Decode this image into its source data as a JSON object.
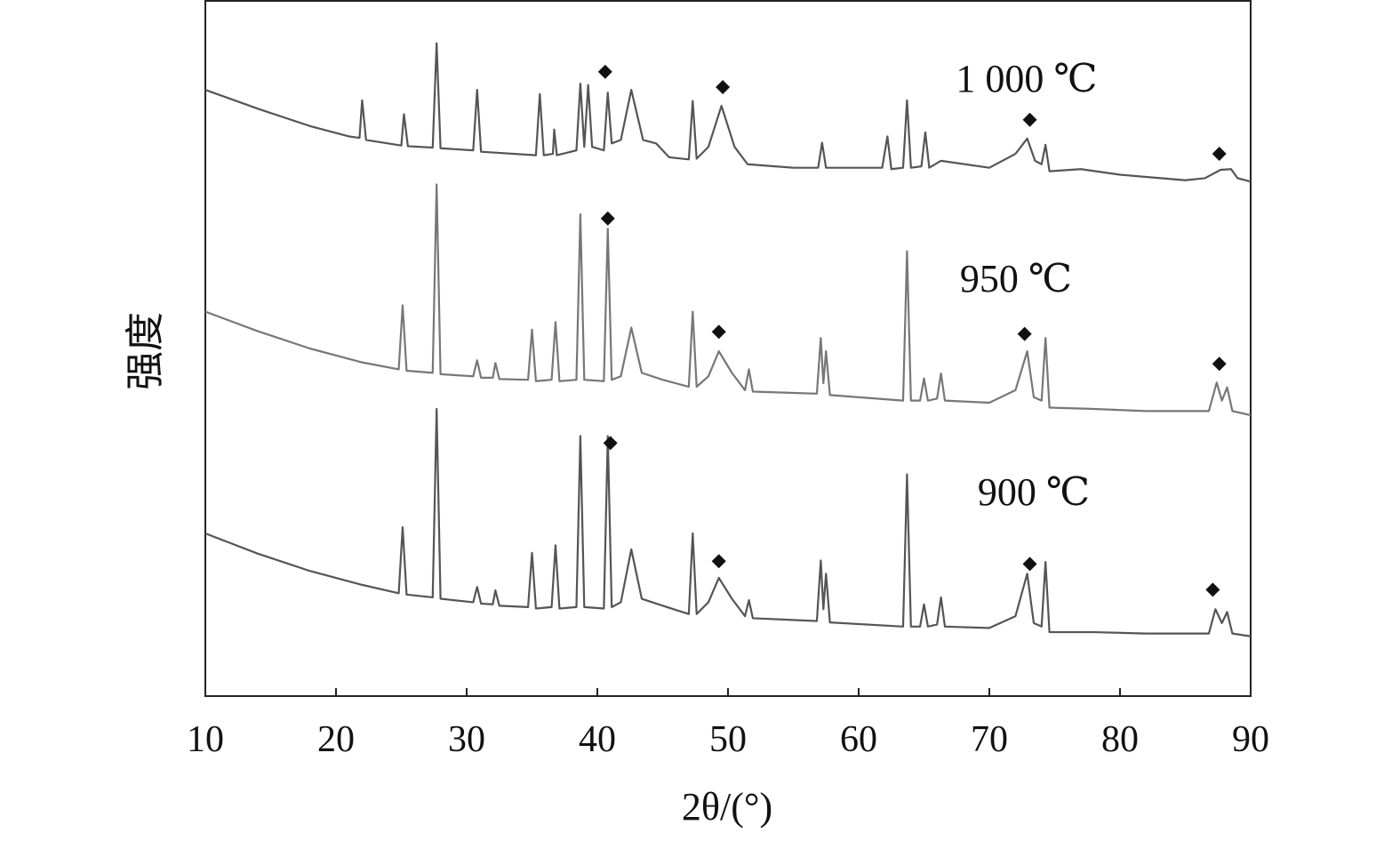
{
  "chart_data": {
    "type": "line",
    "xlabel": "2θ/(°)",
    "ylabel": "强度",
    "xlim": [
      10,
      90
    ],
    "xticks": [
      10,
      20,
      30,
      40,
      50,
      60,
      70,
      80,
      90
    ],
    "ylim": [
      0,
      100
    ],
    "series": [
      {
        "name": "1 000 ℃",
        "color": "#555555",
        "x": [
          10,
          14,
          18,
          21,
          21.8,
          22,
          22.3,
          25,
          25.2,
          25.5,
          27.4,
          27.7,
          28,
          30.5,
          30.8,
          31.1,
          35.3,
          35.6,
          35.9,
          36.6,
          36.7,
          36.9,
          38.4,
          38.7,
          39,
          39.3,
          39.6,
          40.5,
          40.8,
          41.1,
          41.8,
          42.6,
          43.5,
          44.5,
          45.5,
          47,
          47.3,
          47.6,
          48.5,
          49.5,
          50.5,
          51.5,
          55,
          56.9,
          57.2,
          57.5,
          61.8,
          62.2,
          62.5,
          63.4,
          63.7,
          64,
          64.8,
          65.1,
          65.4,
          66.3,
          70,
          72,
          72.9,
          73.5,
          74,
          74.3,
          74.6,
          77,
          80,
          85,
          86.5,
          87.7,
          88.5,
          89,
          90
        ],
        "values": [
          87.2,
          84.5,
          82,
          80.5,
          80.3,
          85.7,
          80,
          79.2,
          83.7,
          79.1,
          78.9,
          93.9,
          78.8,
          78.5,
          87.2,
          78.3,
          77.8,
          86.6,
          77.8,
          78,
          81.5,
          77.8,
          78.5,
          88.1,
          79,
          87.9,
          79,
          78.5,
          86.8,
          79.5,
          80,
          87.2,
          80,
          79.5,
          77.5,
          77.2,
          85.6,
          77.3,
          79,
          84.9,
          79,
          76.5,
          76,
          76,
          79.6,
          76,
          76,
          80.5,
          75.8,
          76,
          85.7,
          76,
          76.2,
          81.1,
          76,
          77,
          76,
          78,
          80.2,
          77,
          76.5,
          79.3,
          75.5,
          75.8,
          75,
          74.2,
          74.5,
          75.7,
          75.8,
          74.5,
          74
        ],
        "markers": {
          "x": [
            40.6,
            49.6,
            73.1,
            87.6
          ],
          "y": [
            89.8,
            87.6,
            82.9,
            78.0
          ]
        }
      },
      {
        "name": "950 ℃",
        "color": "#777777",
        "x": [
          10,
          14,
          18,
          22,
          24.8,
          25.1,
          25.4,
          27.4,
          27.7,
          28,
          30.5,
          30.8,
          31.1,
          32,
          32.2,
          32.5,
          34.7,
          35,
          35.3,
          36.5,
          36.8,
          37.1,
          38.4,
          38.7,
          39,
          40.5,
          40.8,
          41.1,
          41.8,
          42.6,
          43.4,
          45,
          47,
          47.3,
          47.6,
          48.5,
          49.3,
          50.3,
          51.3,
          51.6,
          51.9,
          56.8,
          57.1,
          57.3,
          57.5,
          57.8,
          63.4,
          63.7,
          64,
          64.7,
          65,
          65.3,
          66,
          66.3,
          66.6,
          70,
          72,
          72.9,
          73.4,
          74,
          74.3,
          74.6,
          78,
          82,
          86.8,
          87.4,
          87.8,
          88.2,
          88.6,
          90
        ],
        "values": [
          55.3,
          52.5,
          50,
          48,
          47,
          56.2,
          46.8,
          46.5,
          73.6,
          46.3,
          46,
          48.3,
          45.8,
          45.8,
          47.9,
          45.6,
          45.5,
          52.7,
          45.3,
          45.5,
          53.8,
          45.3,
          45.5,
          69.3,
          45.5,
          45.3,
          67.2,
          45.5,
          46,
          53,
          46.5,
          45.5,
          44.5,
          55.3,
          44.5,
          46,
          49.6,
          46.5,
          44,
          47,
          43.8,
          43.5,
          51.5,
          45,
          49.6,
          43.3,
          42.5,
          64,
          42.5,
          42.5,
          45.7,
          42.5,
          42.8,
          46.4,
          42.5,
          42.2,
          44,
          49.6,
          43,
          42.5,
          51.5,
          41.5,
          41.3,
          41,
          41,
          45.1,
          42.5,
          44.4,
          41,
          40.4
        ],
        "markers": {
          "x": [
            40.8,
            49.3,
            72.7,
            87.6
          ],
          "y": [
            68.7,
            52.4,
            52.1,
            47.8
          ]
        }
      },
      {
        "name": "900 ℃",
        "color": "#555555",
        "x": [
          10,
          14,
          18,
          22,
          24.8,
          25.1,
          25.4,
          27.4,
          27.7,
          28,
          30.5,
          30.8,
          31.1,
          32,
          32.2,
          32.5,
          34.7,
          35,
          35.3,
          36.5,
          36.8,
          37.1,
          38.4,
          38.7,
          39,
          40.5,
          40.8,
          41.1,
          41.8,
          42.6,
          43.4,
          45,
          47,
          47.3,
          47.6,
          48.5,
          49.3,
          50.3,
          51.3,
          51.6,
          51.9,
          56.8,
          57.1,
          57.3,
          57.5,
          57.8,
          63.4,
          63.7,
          64,
          64.7,
          65,
          65.3,
          66,
          66.3,
          66.6,
          70,
          72,
          72.9,
          73.4,
          74,
          74.3,
          74.6,
          78,
          82,
          86.8,
          87.3,
          87.8,
          88.2,
          88.6,
          90
        ],
        "values": [
          23.4,
          20.5,
          18,
          16,
          14.8,
          24.3,
          14.6,
          14.2,
          41.3,
          14,
          13.5,
          15.7,
          13.3,
          13.2,
          15.2,
          13,
          12.8,
          20.6,
          12.6,
          12.8,
          21.7,
          12.6,
          12.8,
          37.4,
          12.8,
          12.6,
          37.4,
          12.8,
          13.5,
          21.1,
          14,
          13,
          11.8,
          23.4,
          11.8,
          13.5,
          17,
          14,
          11.5,
          13.8,
          11.2,
          10.8,
          19.5,
          12.5,
          17.6,
          10.6,
          10,
          31.9,
          10,
          10,
          13.2,
          10,
          10.3,
          14.2,
          10,
          9.8,
          11.5,
          17.6,
          10.5,
          10,
          19.3,
          9.2,
          9.2,
          9,
          9,
          12.5,
          10.5,
          12.1,
          9,
          8.6
        ],
        "markers": {
          "x": [
            41,
            49.3,
            73.1,
            87.1
          ],
          "y": [
            36.4,
            19.4,
            19,
            15.3
          ]
        }
      }
    ]
  }
}
